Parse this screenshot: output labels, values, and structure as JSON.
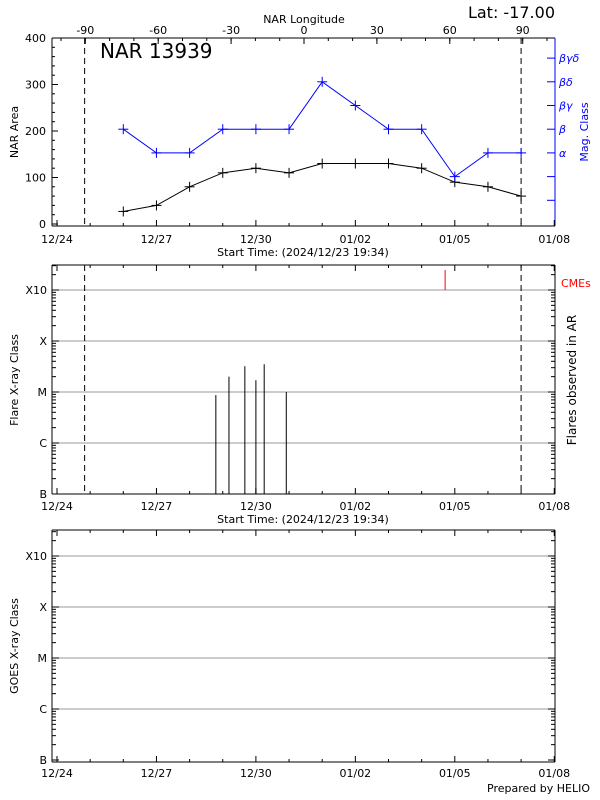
{
  "footer": "Prepared by HELIO",
  "chart_data": [
    {
      "type": "line",
      "title": "NAR 13939",
      "annotation": "Lat: -17.00",
      "xlabel": "Start Time: (2024/12/23 19:34)",
      "x_tick_labels": [
        "12/24",
        "12/27",
        "12/30",
        "01/02",
        "01/05",
        "01/08"
      ],
      "x_ticks": [
        "2024-12-24",
        "2024-12-27",
        "2024-12-30",
        "2025-01-02",
        "2025-01-05",
        "2025-01-08"
      ],
      "x2label": "NAR Longitude",
      "x2_ticks": [
        -90,
        -60,
        -30,
        0,
        30,
        60,
        90
      ],
      "ylabel": "NAR Area",
      "ylim": [
        0,
        400
      ],
      "y_ticks": [
        0,
        100,
        200,
        300,
        400
      ],
      "y2label": "Mag. Class",
      "y2_levels": [
        {
          "level": 1,
          "label": ""
        },
        {
          "level": 2,
          "label": ""
        },
        {
          "level": 3,
          "label": "α"
        },
        {
          "level": 4,
          "label": "β"
        },
        {
          "level": 5,
          "label": "βγ"
        },
        {
          "level": 6,
          "label": "βδ"
        },
        {
          "level": 7,
          "label": "βγδ"
        }
      ],
      "x": [
        "2024-12-26",
        "2024-12-27",
        "2024-12-28",
        "2024-12-29",
        "2024-12-30",
        "2024-12-31",
        "2025-01-01",
        "2025-01-02",
        "2025-01-03",
        "2025-01-04",
        "2025-01-05",
        "2025-01-06",
        "2025-01-07"
      ],
      "series": [
        {
          "values": [
            27,
            40,
            80,
            110,
            120,
            110,
            130,
            130,
            130,
            120,
            90,
            80,
            60
          ],
          "color": "#000000",
          "axis": "left"
        },
        {
          "values": [
            4,
            3,
            3,
            4,
            4,
            4,
            6,
            5,
            4,
            4,
            2,
            3,
            3
          ],
          "color": "#0000ff",
          "axis": "right"
        }
      ],
      "vlines": [
        "2024-12-24T20:00",
        "2025-01-07T00:00"
      ]
    },
    {
      "type": "bar",
      "xlabel": "Start Time: (2024/12/23 19:34)",
      "x_tick_labels": [
        "12/24",
        "12/27",
        "12/30",
        "01/02",
        "01/05",
        "01/08"
      ],
      "ylabel": "Flare X-ray Class",
      "y2label": "Flares observed in AR",
      "y_levels": [
        "B",
        "C",
        "M",
        "X",
        "X10"
      ],
      "grid": true,
      "flares": [
        {
          "time": "2024-12-28T19:00",
          "class": "C8.7"
        },
        {
          "time": "2024-12-29T04:30",
          "class": "M2.0"
        },
        {
          "time": "2024-12-29T16:00",
          "class": "M3.2"
        },
        {
          "time": "2024-12-30T00:00",
          "class": "B1.3"
        },
        {
          "time": "2024-12-30T00:00",
          "class": "M1.7"
        },
        {
          "time": "2024-12-30T06:00",
          "class": "M3.5"
        },
        {
          "time": "2024-12-30T22:00",
          "class": "M1.0"
        }
      ],
      "cmes": [
        "2025-01-04T17:00"
      ],
      "cme_label": "CMEs",
      "cme_color": "#ff0000",
      "vlines": [
        "2024-12-24T20:00",
        "2025-01-07T00:00"
      ]
    },
    {
      "type": "line",
      "xlabel": "",
      "x_tick_labels": [
        "12/24",
        "12/27",
        "12/30",
        "01/02",
        "01/05",
        "01/08"
      ],
      "ylabel": "GOES X-ray Class",
      "y_levels": [
        "B",
        "C",
        "M",
        "X",
        "X10"
      ],
      "grid": true,
      "series": []
    }
  ]
}
